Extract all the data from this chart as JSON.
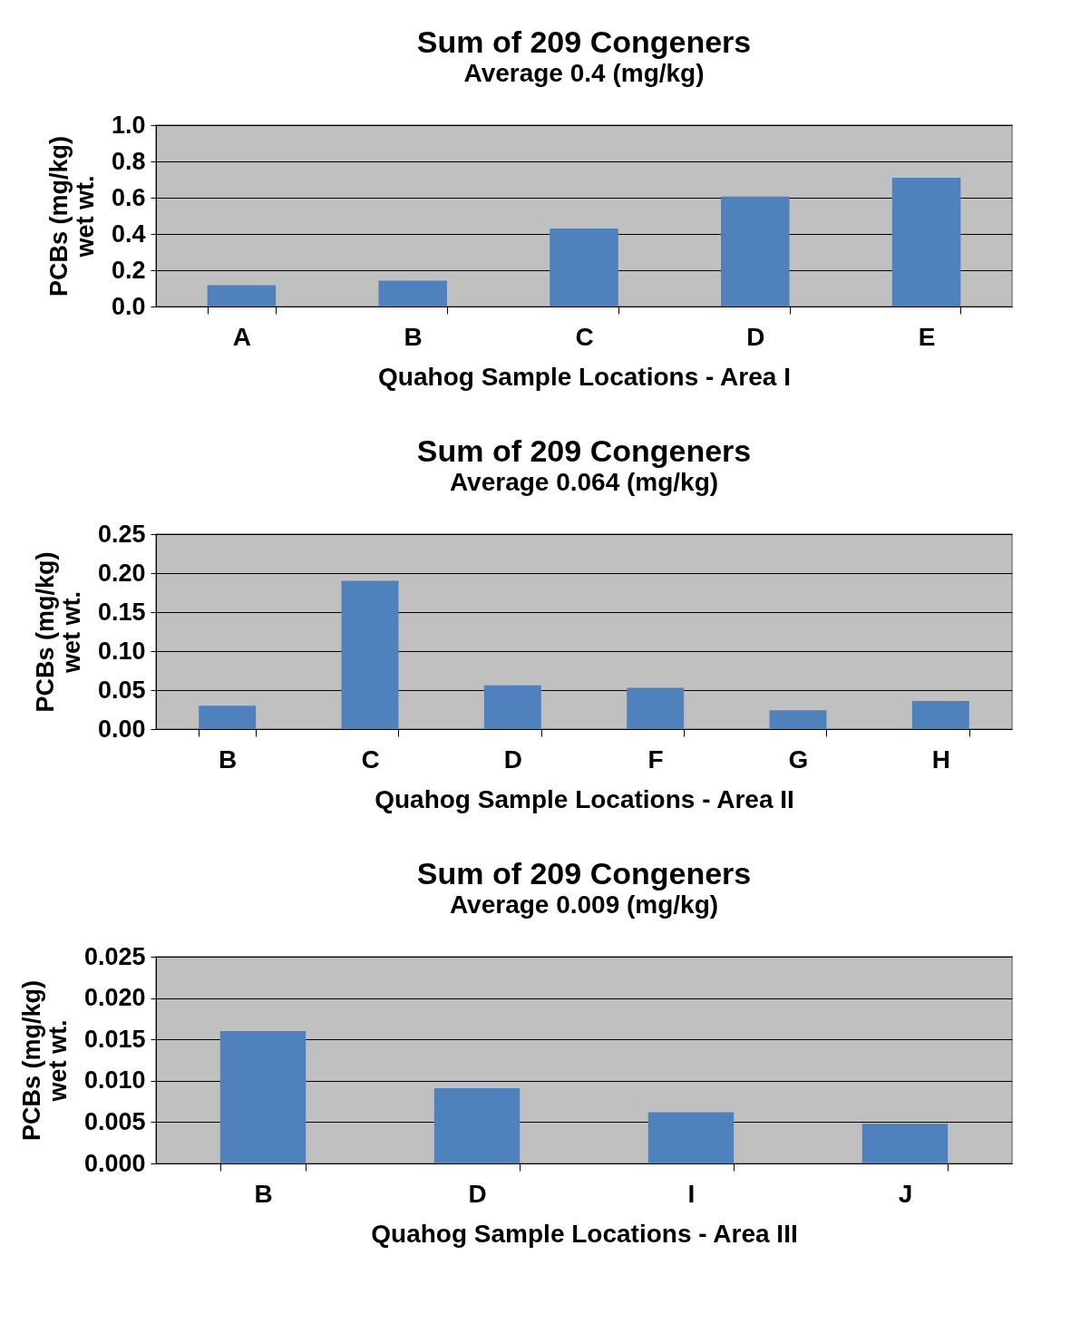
{
  "chart_data": [
    {
      "type": "bar",
      "title": "Sum of 209 Congeners",
      "subtitle": "Average 0.4 (mg/kg)",
      "xlabel": "Quahog Sample Locations - Area I",
      "ylabel": "PCBs (mg/kg)\nwet wt.",
      "categories": [
        "A",
        "B",
        "C",
        "D",
        "E"
      ],
      "values": [
        0.118,
        0.143,
        0.43,
        0.606,
        0.71
      ],
      "color": "#4f81bd",
      "ylim": [
        0,
        1.0
      ],
      "yticks": [
        {
          "value": 0,
          "label": "0.0"
        },
        {
          "value": 0.2,
          "label": "0.2"
        },
        {
          "value": 0.4,
          "label": "0.4"
        },
        {
          "value": 0.6,
          "label": "0.6"
        },
        {
          "value": 0.8,
          "label": "0.8"
        },
        {
          "value": 1.0,
          "label": "1.0"
        }
      ],
      "grid": "y"
    },
    {
      "type": "bar",
      "title": "Sum of 209 Congeners",
      "subtitle": "Average 0.064 (mg/kg)",
      "xlabel": "Quahog Sample Locations - Area II",
      "ylabel": "PCBs (mg/kg)\nwet wt.",
      "categories": [
        "B",
        "C",
        "D",
        "F",
        "G",
        "H"
      ],
      "values": [
        0.03,
        0.19,
        0.056,
        0.053,
        0.024,
        0.036
      ],
      "color": "#4f81bd",
      "ylim": [
        0,
        0.25
      ],
      "yticks": [
        {
          "value": 0,
          "label": "0.00"
        },
        {
          "value": 0.05,
          "label": "0.05"
        },
        {
          "value": 0.1,
          "label": "0.10"
        },
        {
          "value": 0.15,
          "label": "0.15"
        },
        {
          "value": 0.2,
          "label": "0.20"
        },
        {
          "value": 0.25,
          "label": "0.25"
        }
      ],
      "grid": "y"
    },
    {
      "type": "bar",
      "title": "Sum of 209 Congeners",
      "subtitle": "Average 0.009 (mg/kg)",
      "xlabel": "Quahog Sample Locations - Area III",
      "ylabel": "PCBs (mg/kg)\nwet wt.",
      "categories": [
        "B",
        "D",
        "I",
        "J"
      ],
      "values": [
        0.016,
        0.0091,
        0.0062,
        0.0048
      ],
      "color": "#4f81bd",
      "ylim": [
        0,
        0.025
      ],
      "yticks": [
        {
          "value": 0,
          "label": "0.000"
        },
        {
          "value": 0.005,
          "label": "0.005"
        },
        {
          "value": 0.01,
          "label": "0.010"
        },
        {
          "value": 0.015,
          "label": "0.015"
        },
        {
          "value": 0.02,
          "label": "0.020"
        },
        {
          "value": 0.025,
          "label": "0.025"
        }
      ],
      "grid": "y"
    }
  ]
}
